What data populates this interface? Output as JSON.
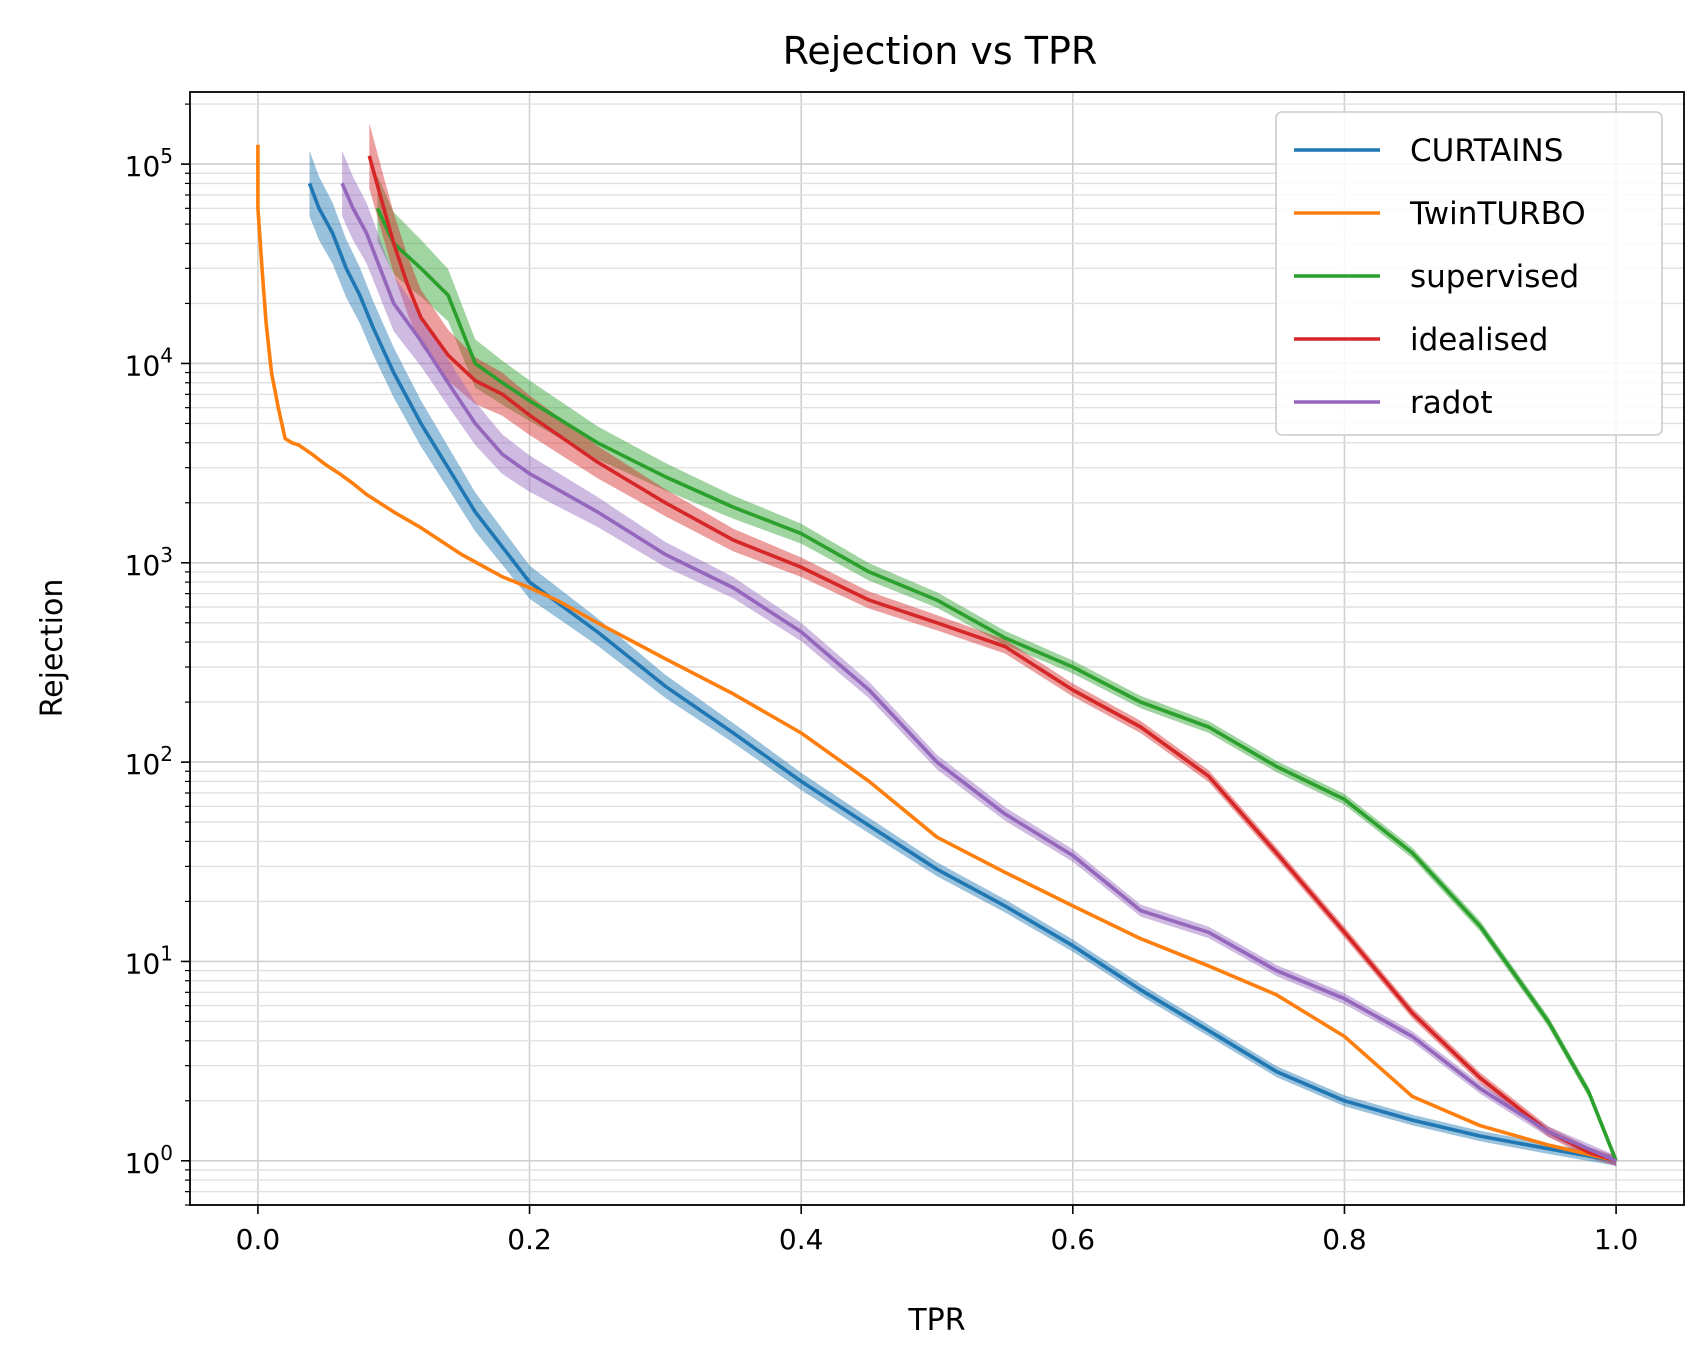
{
  "chart_data": {
    "type": "line",
    "title": "Rejection vs TPR",
    "xlabel": "TPR",
    "ylabel": "Rejection",
    "xlim": [
      -0.05,
      1.05
    ],
    "ylim": [
      0.6,
      230000
    ],
    "yscale": "log",
    "grid": true,
    "grid_minor_y": true,
    "legend_position": "upper right",
    "x_ticks": [
      {
        "value": 0.0,
        "label": "0.0"
      },
      {
        "value": 0.2,
        "label": "0.2"
      },
      {
        "value": 0.4,
        "label": "0.4"
      },
      {
        "value": 0.6,
        "label": "0.6"
      },
      {
        "value": 0.8,
        "label": "0.8"
      },
      {
        "value": 1.0,
        "label": "1.0"
      }
    ],
    "y_ticks": [
      {
        "value": 1,
        "base": "10",
        "exp": "0"
      },
      {
        "value": 10,
        "base": "10",
        "exp": "1"
      },
      {
        "value": 100,
        "base": "10",
        "exp": "2"
      },
      {
        "value": 1000,
        "base": "10",
        "exp": "3"
      },
      {
        "value": 10000,
        "base": "10",
        "exp": "4"
      },
      {
        "value": 100000,
        "base": "10",
        "exp": "5"
      }
    ],
    "series": [
      {
        "name": "CURTAINS",
        "color": "#1f77b4",
        "band": true,
        "x": [
          0.038,
          0.045,
          0.055,
          0.065,
          0.075,
          0.085,
          0.1,
          0.12,
          0.14,
          0.16,
          0.18,
          0.2,
          0.25,
          0.3,
          0.35,
          0.4,
          0.45,
          0.5,
          0.55,
          0.6,
          0.65,
          0.7,
          0.75,
          0.8,
          0.85,
          0.9,
          0.95,
          1.0
        ],
        "y": [
          80000,
          60000,
          45000,
          30000,
          22000,
          15000,
          9000,
          5000,
          3000,
          1800,
          1200,
          800,
          450,
          240,
          140,
          80,
          48,
          29,
          19,
          12,
          7.2,
          4.5,
          2.8,
          2.0,
          1.6,
          1.33,
          1.15,
          1.0
        ]
      },
      {
        "name": "TwinTURBO",
        "color": "#ff7f0e",
        "band": false,
        "x": [
          0.0,
          0.0,
          0.003,
          0.006,
          0.01,
          0.015,
          0.02,
          0.025,
          0.03,
          0.04,
          0.05,
          0.06,
          0.07,
          0.08,
          0.1,
          0.12,
          0.15,
          0.18,
          0.2,
          0.22,
          0.25,
          0.3,
          0.35,
          0.4,
          0.45,
          0.5,
          0.55,
          0.6,
          0.65,
          0.7,
          0.75,
          0.8,
          0.85,
          0.9,
          0.95,
          1.0
        ],
        "y": [
          125000,
          60000,
          30000,
          16000,
          9000,
          6000,
          4200,
          4000,
          3900,
          3500,
          3100,
          2800,
          2500,
          2200,
          1800,
          1500,
          1100,
          850,
          750,
          650,
          500,
          330,
          220,
          140,
          80,
          42,
          28,
          19,
          13,
          9.5,
          6.8,
          4.2,
          2.1,
          1.5,
          1.2,
          1.0
        ]
      },
      {
        "name": "supervised",
        "color": "#2ca02c",
        "band": true,
        "x": [
          0.088,
          0.1,
          0.12,
          0.14,
          0.16,
          0.18,
          0.2,
          0.25,
          0.3,
          0.35,
          0.4,
          0.45,
          0.5,
          0.55,
          0.6,
          0.65,
          0.7,
          0.75,
          0.8,
          0.85,
          0.9,
          0.95,
          0.98,
          1.0
        ],
        "y": [
          60000,
          40000,
          30000,
          22000,
          10000,
          8000,
          6500,
          4000,
          2700,
          1900,
          1400,
          900,
          650,
          420,
          300,
          200,
          150,
          95,
          65,
          35,
          15,
          5,
          2.2,
          1.0
        ]
      },
      {
        "name": "idealised",
        "color": "#d62728",
        "band": true,
        "x": [
          0.082,
          0.09,
          0.1,
          0.11,
          0.12,
          0.14,
          0.16,
          0.18,
          0.2,
          0.25,
          0.3,
          0.35,
          0.4,
          0.45,
          0.5,
          0.55,
          0.6,
          0.65,
          0.7,
          0.75,
          0.8,
          0.85,
          0.9,
          0.95,
          0.98,
          1.0
        ],
        "y": [
          110000,
          70000,
          40000,
          25000,
          17000,
          11000,
          8200,
          7000,
          5500,
          3200,
          2000,
          1300,
          950,
          650,
          500,
          380,
          230,
          150,
          85,
          35,
          14,
          5.5,
          2.6,
          1.4,
          1.1,
          1.0
        ]
      },
      {
        "name": "radot",
        "color": "#9467bd",
        "band": true,
        "x": [
          0.062,
          0.07,
          0.08,
          0.09,
          0.1,
          0.12,
          0.14,
          0.16,
          0.18,
          0.2,
          0.25,
          0.3,
          0.35,
          0.4,
          0.45,
          0.5,
          0.55,
          0.6,
          0.65,
          0.7,
          0.75,
          0.8,
          0.85,
          0.9,
          0.95,
          1.0
        ],
        "y": [
          80000,
          60000,
          45000,
          30000,
          20000,
          13000,
          8000,
          5000,
          3500,
          2800,
          1800,
          1100,
          750,
          450,
          230,
          100,
          55,
          34,
          18,
          14,
          9,
          6.5,
          4.2,
          2.3,
          1.4,
          1.0
        ]
      }
    ]
  }
}
